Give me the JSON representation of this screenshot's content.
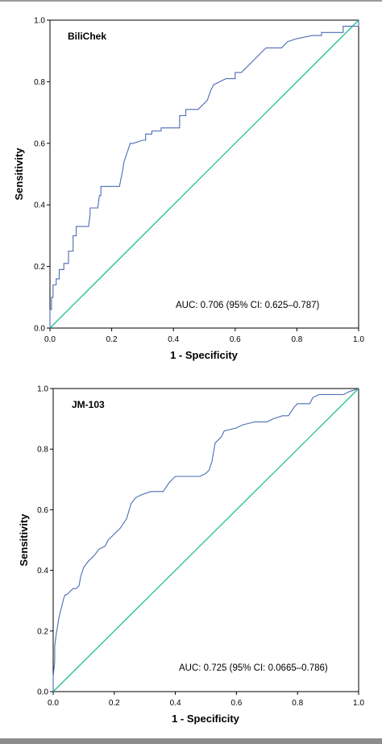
{
  "chart_data": [
    {
      "type": "line",
      "title": "BiliChek",
      "xlabel": "1 - Specificity",
      "ylabel": "Sensitivity",
      "xlim": [
        0,
        1
      ],
      "ylim": [
        0,
        1
      ],
      "xticks": [
        "0.0",
        "0.2",
        "0.4",
        "0.6",
        "0.8",
        "1.0"
      ],
      "yticks": [
        "0.0",
        "0.2",
        "0.4",
        "0.6",
        "0.8",
        "1.0"
      ],
      "annotation": "AUC: 0.706 (95% CI: 0.625–0.787)",
      "colors": {
        "roc": "#4a6db5",
        "reference": "#1fbf8f"
      },
      "series": [
        {
          "x": [
            0,
            0,
            0.005,
            0.005,
            0.01,
            0.01,
            0.02,
            0.02,
            0.03,
            0.03,
            0.045,
            0.045,
            0.06,
            0.06,
            0.075,
            0.075,
            0.085,
            0.085,
            0.1,
            0.125,
            0.13,
            0.13,
            0.155,
            0.16,
            0.165,
            0.165,
            0.225,
            0.235,
            0.24,
            0.26,
            0.27,
            0.3,
            0.31,
            0.31,
            0.33,
            0.33,
            0.36,
            0.36,
            0.42,
            0.42,
            0.44,
            0.44,
            0.48,
            0.51,
            0.52,
            0.53,
            0.55,
            0.57,
            0.6,
            0.6,
            0.62,
            0.65,
            0.68,
            0.7,
            0.75,
            0.77,
            0.8,
            0.85,
            0.88,
            0.88,
            0.95,
            0.95,
            1.0,
            1.0
          ],
          "y": [
            0,
            0.06,
            0.06,
            0.1,
            0.1,
            0.14,
            0.14,
            0.16,
            0.16,
            0.19,
            0.19,
            0.21,
            0.21,
            0.25,
            0.25,
            0.3,
            0.3,
            0.33,
            0.33,
            0.33,
            0.37,
            0.39,
            0.39,
            0.43,
            0.43,
            0.46,
            0.46,
            0.51,
            0.54,
            0.6,
            0.6,
            0.61,
            0.61,
            0.63,
            0.63,
            0.64,
            0.64,
            0.65,
            0.65,
            0.69,
            0.69,
            0.71,
            0.71,
            0.74,
            0.77,
            0.79,
            0.8,
            0.81,
            0.81,
            0.83,
            0.83,
            0.86,
            0.89,
            0.91,
            0.91,
            0.93,
            0.94,
            0.95,
            0.95,
            0.96,
            0.96,
            0.98,
            0.98,
            1.0
          ]
        },
        {
          "x": [
            0,
            1
          ],
          "y": [
            0,
            1
          ]
        }
      ]
    },
    {
      "type": "line",
      "title": "JM-103",
      "xlabel": "1 - Specificity",
      "ylabel": "Sensitivity",
      "xlim": [
        0,
        1
      ],
      "ylim": [
        0,
        1
      ],
      "xticks": [
        "0.0",
        "0.2",
        "0.4",
        "0.6",
        "0.8",
        "1.0"
      ],
      "yticks": [
        "0.0",
        "0.2",
        "0.4",
        "0.6",
        "0.8",
        "1.0"
      ],
      "annotation": "AUC: 0.725 (95% CI: 0.0665–0.786)",
      "colors": {
        "roc": "#4a6db5",
        "reference": "#1fbf8f"
      },
      "series": [
        {
          "x": [
            0,
            0,
            0.005,
            0.005,
            0.01,
            0.015,
            0.02,
            0.025,
            0.03,
            0.035,
            0.04,
            0.045,
            0.055,
            0.065,
            0.075,
            0.085,
            0.09,
            0.1,
            0.115,
            0.135,
            0.15,
            0.17,
            0.18,
            0.2,
            0.22,
            0.24,
            0.255,
            0.27,
            0.29,
            0.32,
            0.36,
            0.38,
            0.4,
            0.42,
            0.44,
            0.48,
            0.5,
            0.51,
            0.52,
            0.53,
            0.55,
            0.56,
            0.6,
            0.62,
            0.66,
            0.7,
            0.72,
            0.75,
            0.77,
            0.79,
            0.8,
            0.84,
            0.85,
            0.87,
            0.95,
            0.97,
            1.0
          ],
          "y": [
            0,
            0.05,
            0.1,
            0.15,
            0.19,
            0.22,
            0.25,
            0.27,
            0.29,
            0.31,
            0.32,
            0.32,
            0.33,
            0.34,
            0.34,
            0.35,
            0.38,
            0.41,
            0.43,
            0.45,
            0.47,
            0.48,
            0.5,
            0.52,
            0.54,
            0.57,
            0.62,
            0.64,
            0.65,
            0.66,
            0.66,
            0.69,
            0.71,
            0.71,
            0.71,
            0.71,
            0.72,
            0.73,
            0.76,
            0.82,
            0.84,
            0.86,
            0.87,
            0.88,
            0.89,
            0.89,
            0.9,
            0.91,
            0.91,
            0.94,
            0.95,
            0.95,
            0.97,
            0.98,
            0.98,
            0.99,
            1.0
          ]
        },
        {
          "x": [
            0,
            1
          ],
          "y": [
            0,
            1
          ]
        }
      ]
    }
  ]
}
